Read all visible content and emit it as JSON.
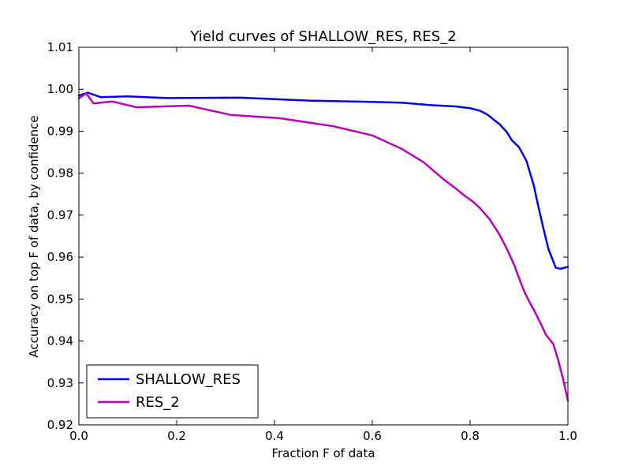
{
  "chart_data": {
    "type": "line",
    "title": "Yield curves of SHALLOW_RES, RES_2",
    "xlabel": "Fraction F of data",
    "ylabel": "Accuracy on top F of data, by confidence",
    "xlim": [
      0.0,
      1.0
    ],
    "ylim": [
      0.92,
      1.01
    ],
    "xticks": [
      "0.0",
      "0.2",
      "0.4",
      "0.6",
      "0.8",
      "1.0"
    ],
    "yticks": [
      "0.92",
      "0.93",
      "0.94",
      "0.95",
      "0.96",
      "0.97",
      "0.98",
      "0.99",
      "1.00",
      "1.01"
    ],
    "grid": false,
    "legend_position": "lower-left",
    "series": [
      {
        "name": "SHALLOW_RES",
        "color": "#0000ee",
        "points": [
          [
            0.0,
            0.9985
          ],
          [
            0.018,
            0.9992
          ],
          [
            0.045,
            0.9981
          ],
          [
            0.1,
            0.9983
          ],
          [
            0.18,
            0.9979
          ],
          [
            0.33,
            0.998
          ],
          [
            0.47,
            0.9973
          ],
          [
            0.6,
            0.997
          ],
          [
            0.66,
            0.9968
          ],
          [
            0.72,
            0.9962
          ],
          [
            0.77,
            0.9959
          ],
          [
            0.8,
            0.9955
          ],
          [
            0.82,
            0.9949
          ],
          [
            0.835,
            0.994
          ],
          [
            0.85,
            0.9926
          ],
          [
            0.86,
            0.9917
          ],
          [
            0.875,
            0.9898
          ],
          [
            0.885,
            0.9879
          ],
          [
            0.9,
            0.9862
          ],
          [
            0.915,
            0.983
          ],
          [
            0.93,
            0.9772
          ],
          [
            0.94,
            0.9718
          ],
          [
            0.95,
            0.9668
          ],
          [
            0.96,
            0.962
          ],
          [
            0.975,
            0.9575
          ],
          [
            0.985,
            0.9572
          ],
          [
            1.0,
            0.9577
          ]
        ]
      },
      {
        "name": "RES_2",
        "color": "#bb00bb",
        "points": [
          [
            0.0,
            0.9978
          ],
          [
            0.015,
            0.999
          ],
          [
            0.03,
            0.9966
          ],
          [
            0.068,
            0.9971
          ],
          [
            0.118,
            0.9957
          ],
          [
            0.225,
            0.9961
          ],
          [
            0.31,
            0.9939
          ],
          [
            0.41,
            0.9931
          ],
          [
            0.52,
            0.9912
          ],
          [
            0.6,
            0.989
          ],
          [
            0.66,
            0.9858
          ],
          [
            0.705,
            0.9826
          ],
          [
            0.745,
            0.9786
          ],
          [
            0.77,
            0.9764
          ],
          [
            0.79,
            0.9745
          ],
          [
            0.805,
            0.9733
          ],
          [
            0.82,
            0.9717
          ],
          [
            0.84,
            0.969
          ],
          [
            0.86,
            0.9654
          ],
          [
            0.875,
            0.962
          ],
          [
            0.89,
            0.9582
          ],
          [
            0.9,
            0.955
          ],
          [
            0.91,
            0.952
          ],
          [
            0.92,
            0.9496
          ],
          [
            0.93,
            0.9475
          ],
          [
            0.945,
            0.944
          ],
          [
            0.955,
            0.9415
          ],
          [
            0.97,
            0.9393
          ],
          [
            0.98,
            0.9355
          ],
          [
            0.99,
            0.931
          ],
          [
            1.0,
            0.9258
          ]
        ]
      }
    ]
  }
}
